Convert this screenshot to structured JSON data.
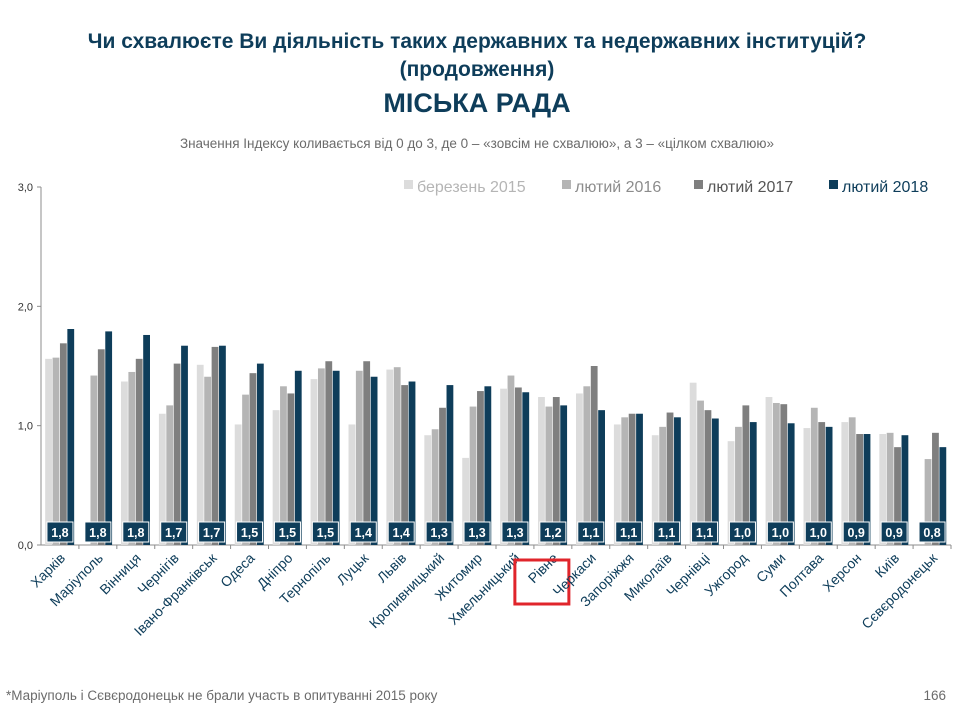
{
  "header": {
    "title_line1": "Чи схвалюєте Ви діяльність таких державних та недержавних інституцій?",
    "title_line2": "(продовження)",
    "title_line3": "МІСЬКА РАДА",
    "subtitle": "Значення Індексу коливається від 0 до 3, де 0 – «зовсім не схвалюю», а 3 – «цілком схвалюю»"
  },
  "footer": {
    "footnote": "*Маріуполь і Сєвєродонецьк не брали участь в опитуванні 2015 року",
    "page_number": "166"
  },
  "highlight": {
    "category": "Рівне",
    "color": "#e0252b"
  },
  "chart_data": {
    "type": "bar",
    "ylim": [
      0,
      3
    ],
    "yticks": [
      "0,0",
      "1,0",
      "2,0",
      "3,0"
    ],
    "legend_position": "top-right",
    "categories": [
      "Харків",
      "Маріуполь",
      "Вінниця",
      "Чернігів",
      "Івано-Франківськ",
      "Одеса",
      "Дніпро",
      "Тернопіль",
      "Луцьк",
      "Львів",
      "Кропивницький",
      "Житомир",
      "Хмельницький",
      "Рівне",
      "Черкаси",
      "Запоріжжя",
      "Миколаїв",
      "Чернівці",
      "Ужгород",
      "Суми",
      "Полтава",
      "Херсон",
      "Київ",
      "Сєвєродонецьк"
    ],
    "series": [
      {
        "name": "березень 2015",
        "color": "#dcdcdc",
        "values": [
          1.56,
          null,
          1.37,
          1.1,
          1.51,
          1.01,
          1.13,
          1.39,
          1.01,
          1.47,
          0.92,
          0.73,
          1.31,
          1.24,
          1.27,
          1.01,
          0.92,
          1.36,
          0.87,
          1.24,
          0.98,
          1.03,
          0.93,
          null
        ]
      },
      {
        "name": "лютий 2016",
        "color": "#b5b5b5",
        "values": [
          1.57,
          1.42,
          1.45,
          1.17,
          1.41,
          1.26,
          1.33,
          1.48,
          1.46,
          1.49,
          0.97,
          1.16,
          1.42,
          1.16,
          1.33,
          1.07,
          0.99,
          1.21,
          0.99,
          1.19,
          1.15,
          1.07,
          0.94,
          0.72
        ]
      },
      {
        "name": "лютий 2017",
        "color": "#7f7f7f",
        "values": [
          1.69,
          1.64,
          1.56,
          1.52,
          1.66,
          1.44,
          1.27,
          1.54,
          1.54,
          1.34,
          1.15,
          1.29,
          1.32,
          1.24,
          1.5,
          1.1,
          1.11,
          1.13,
          1.17,
          1.18,
          1.03,
          0.93,
          0.82,
          0.94
        ]
      },
      {
        "name": "лютий 2018",
        "color": "#0e3d5a",
        "values": [
          1.81,
          1.79,
          1.76,
          1.67,
          1.67,
          1.52,
          1.46,
          1.46,
          1.41,
          1.37,
          1.34,
          1.33,
          1.28,
          1.17,
          1.13,
          1.1,
          1.07,
          1.06,
          1.03,
          1.02,
          0.99,
          0.93,
          0.92,
          0.82
        ]
      }
    ],
    "data_labels": [
      "1,8",
      "1,8",
      "1,8",
      "1,7",
      "1,7",
      "1,5",
      "1,5",
      "1,5",
      "1,4",
      "1,4",
      "1,3",
      "1,3",
      "1,3",
      "1,2",
      "1,1",
      "1,1",
      "1,1",
      "1,1",
      "1,0",
      "1,0",
      "1,0",
      "0,9",
      "0,9",
      "0,8"
    ]
  }
}
